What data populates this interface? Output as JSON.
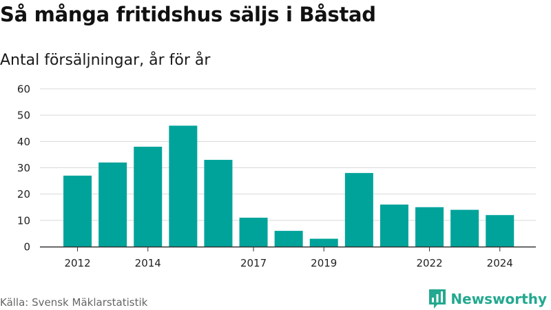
{
  "colors": {
    "bar": "#00a39a",
    "brand": "#23a98f",
    "grid": "#d9d9d9",
    "axis": "#333333"
  },
  "footer": {
    "source": "Källa: Svensk Mäklarstatistik",
    "brand_name": "Newsworthy",
    "brand_icon": "newsworthy-logo-icon"
  },
  "chart_data": {
    "type": "bar",
    "title": "Så många fritidshus säljs i Båstad",
    "subtitle": "Antal försäljningar, år för år",
    "categories": [
      "2012",
      "2013",
      "2014",
      "2015",
      "2016",
      "2017",
      "2018",
      "2019",
      "2020",
      "2021",
      "2022",
      "2023",
      "2024"
    ],
    "values": [
      27,
      32,
      38,
      46,
      33,
      11,
      6,
      3,
      28,
      16,
      15,
      14,
      12
    ],
    "x_tick_labels": [
      "2012",
      "2014",
      "2017",
      "2019",
      "2022",
      "2024"
    ],
    "y_ticks": [
      0,
      10,
      20,
      30,
      40,
      50,
      60
    ],
    "ylim": [
      0,
      60
    ],
    "xlabel": "",
    "ylabel": "",
    "grid": true,
    "legend": "none"
  }
}
